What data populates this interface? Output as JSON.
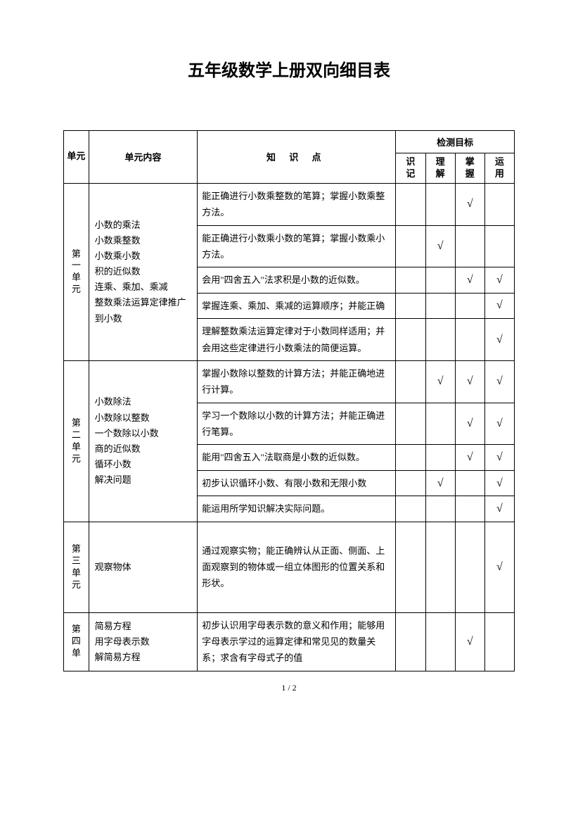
{
  "title": "五年级数学上册双向细目表",
  "headers": {
    "unit": "单元",
    "content": "单元内容",
    "knowledge": "知 识 点",
    "target": "检测目标",
    "sub": [
      "识记",
      "理解",
      "掌握",
      "运用"
    ]
  },
  "units": [
    {
      "label": "第一单元",
      "content": "小数的乘法\n小数乘整数\n小数乘小数\n积的近似数\n连乘、乘加、乘减\n整数乘法运算定律推广到小数",
      "rows": [
        {
          "k": "能正确进行小数乘整数的笔算；掌握小数乘整方法。",
          "c": [
            "",
            "",
            "√",
            ""
          ]
        },
        {
          "k": "能正确进行小数乘小数的笔算；掌握小数乘小方法。",
          "c": [
            "",
            "√",
            "",
            ""
          ]
        },
        {
          "k": "会用\"四舍五入\"法求积是小数的近似数。",
          "c": [
            "",
            "",
            "√",
            "√"
          ]
        },
        {
          "k": "掌握连乘、乘加、乘减的运算顺序；并能正确",
          "c": [
            "",
            "",
            "",
            "√"
          ]
        },
        {
          "k": "理解整数乘法运算定律对于小数同样适用；并会用这些定律进行小数乘法的简便运算。",
          "c": [
            "",
            "",
            "",
            "√"
          ]
        }
      ]
    },
    {
      "label": "第二单元",
      "content": "小数除法\n小数除以整数\n一个数除以小数\n商的近似数\n循环小数\n解决问题",
      "rows": [
        {
          "k": "掌握小数除以整数的计算方法；并能正确地进行计算。",
          "c": [
            "",
            "√",
            "√",
            "√"
          ]
        },
        {
          "k": "学习一个数除以小数的计算方法；并能正确进行笔算。",
          "c": [
            "",
            "",
            "√",
            "√"
          ]
        },
        {
          "k": "能用\"四舍五入\"法取商是小数的近似数。",
          "c": [
            "",
            "",
            "√",
            "√"
          ]
        },
        {
          "k": "初步认识循环小数、有限小数和无限小数",
          "c": [
            "",
            "√",
            "",
            "√"
          ]
        },
        {
          "k": "能运用所学知识解决实际问题。",
          "c": [
            "",
            "",
            "",
            "√"
          ]
        }
      ]
    },
    {
      "label": "第三单元",
      "content": "观察物体",
      "rows": [
        {
          "k": "通过观察实物；能正确辨认从正面、侧面、上面观察到的物体或一组立体图形的位置关系和形状。",
          "c": [
            "",
            "",
            "",
            "√"
          ]
        }
      ]
    },
    {
      "label": "第四单",
      "content": "简易方程\n用字母表示数\n解简易方程",
      "rows": [
        {
          "k": "初步认识用字母表示数的意义和作用；能够用字母表示学过的运算定律和常见见的数量关系；求含有字母式子的值",
          "c": [
            "",
            "",
            "√",
            ""
          ]
        }
      ]
    }
  ],
  "pageNum": "1 / 2"
}
